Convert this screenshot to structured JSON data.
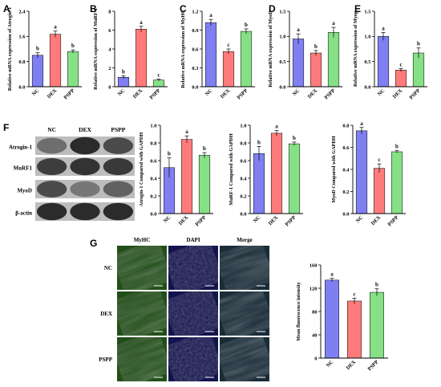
{
  "colors": {
    "nc": "#7f7ff2",
    "dex": "#ff7b7b",
    "pspp": "#86e086",
    "fluor_green": "#3a8a28",
    "fluor_blue": "#16165a"
  },
  "panel_letters": [
    "A",
    "B",
    "C",
    "D",
    "E",
    "F",
    "G"
  ],
  "categories": [
    "NC",
    "DEX",
    "PSPP"
  ],
  "chart_data": [
    {
      "panel": "A",
      "type": "bar",
      "categories": [
        "NC",
        "DEX",
        "PSPP"
      ],
      "values": [
        1.0,
        1.67,
        1.12
      ],
      "errors": [
        0.08,
        0.1,
        0.05
      ],
      "sig": [
        "b",
        "a",
        "b"
      ],
      "ylabel": "Relative mRNA expression of Atrogin-1",
      "ylim": [
        0.0,
        2.4
      ],
      "yticks": [
        "0.0",
        "0.8",
        "1.6",
        "2.4"
      ]
    },
    {
      "panel": "B",
      "type": "bar",
      "categories": [
        "NC",
        "DEX",
        "PSPP"
      ],
      "values": [
        1.0,
        6.1,
        0.7
      ],
      "errors": [
        0.15,
        0.3,
        0.1
      ],
      "sig": [
        "b",
        "a",
        "c"
      ],
      "ylabel": "Relative mRNA expression of MuRF-1",
      "ylim": [
        0,
        8
      ],
      "yticks": [
        "0",
        "2",
        "4",
        "6",
        "8"
      ]
    },
    {
      "panel": "C",
      "type": "bar",
      "categories": [
        "NC",
        "DEX",
        "PSPP"
      ],
      "values": [
        1.02,
        0.56,
        0.88
      ],
      "errors": [
        0.05,
        0.04,
        0.04
      ],
      "sig": [
        "a",
        "c",
        "b"
      ],
      "ylabel": "Relative mRNA expression of MyHC",
      "ylim": [
        0.0,
        1.2
      ],
      "yticks": [
        "0.0",
        "0.3",
        "0.6",
        "0.9",
        "1.2"
      ]
    },
    {
      "panel": "D",
      "type": "bar",
      "categories": [
        "NC",
        "DEX",
        "PSPP"
      ],
      "values": [
        0.95,
        0.67,
        1.08
      ],
      "errors": [
        0.1,
        0.05,
        0.1
      ],
      "sig": [
        "a",
        "b",
        "a"
      ],
      "ylabel": "Relative mRNA expression of MyoD",
      "ylim": [
        0.0,
        1.5
      ],
      "yticks": [
        "0.0",
        "0.5",
        "1.0",
        "1.5"
      ]
    },
    {
      "panel": "E",
      "type": "bar",
      "categories": [
        "NC",
        "DEX",
        "PSPP"
      ],
      "values": [
        1.0,
        0.33,
        0.67
      ],
      "errors": [
        0.08,
        0.03,
        0.1
      ],
      "sig": [
        "a",
        "c",
        "b"
      ],
      "ylabel": "Relative mRNA expression of Myog",
      "ylim": [
        0.0,
        1.5
      ],
      "yticks": [
        "0.0",
        "0.5",
        "1.0",
        "1.5"
      ]
    },
    {
      "panel": "F",
      "type": "bar",
      "categories": [
        "NC",
        "DEX",
        "PSPP"
      ],
      "values": [
        0.52,
        0.84,
        0.66
      ],
      "errors": [
        0.11,
        0.04,
        0.03
      ],
      "sig": [
        "b",
        "a",
        "b"
      ],
      "ylabel": "Atrogin-1 Compared with GAPDH",
      "ylim": [
        0.0,
        1.0
      ],
      "yticks": [
        "0.0",
        "0.2",
        "0.4",
        "0.6",
        "0.8",
        "1.0"
      ]
    },
    {
      "panel": "F",
      "type": "bar",
      "categories": [
        "NC",
        "DEX",
        "PSPP"
      ],
      "values": [
        0.68,
        0.91,
        0.79
      ],
      "errors": [
        0.08,
        0.03,
        0.02
      ],
      "sig": [
        "b",
        "a",
        "b"
      ],
      "ylabel": "MuRF-1 Compared with GAPDH",
      "ylim": [
        0.0,
        1.0
      ],
      "yticks": [
        "0.0",
        "0.2",
        "0.4",
        "0.6",
        "0.8",
        "1.0"
      ]
    },
    {
      "panel": "F",
      "type": "bar",
      "categories": [
        "NC",
        "DEX",
        "PSPP"
      ],
      "values": [
        0.75,
        0.41,
        0.56
      ],
      "errors": [
        0.03,
        0.04,
        0.01
      ],
      "sig": [
        "a",
        "c",
        "b"
      ],
      "ylabel": "MyoD Compared with GAPDH",
      "ylim": [
        0.0,
        0.8
      ],
      "yticks": [
        "0.0",
        "0.2",
        "0.4",
        "0.6",
        "0.8"
      ]
    },
    {
      "panel": "G",
      "type": "bar",
      "categories": [
        "NC",
        "DEX",
        "PSPP"
      ],
      "values": [
        134,
        98,
        113
      ],
      "errors": [
        3,
        5,
        6
      ],
      "sig": [
        "a",
        "c",
        "b"
      ],
      "ylabel": "Mean fluorescence intensity",
      "ylim": [
        0,
        160
      ],
      "yticks": [
        "0",
        "40",
        "80",
        "120",
        "160"
      ]
    }
  ],
  "western_blot": {
    "columns": [
      "NC",
      "DEX",
      "PSPP"
    ],
    "rows": [
      {
        "label": "Atrogin-1",
        "intensity": [
          0.55,
          0.92,
          0.75
        ]
      },
      {
        "label": "MuRF1",
        "intensity": [
          0.82,
          0.88,
          0.84
        ]
      },
      {
        "label": "MyoD",
        "intensity": [
          0.75,
          0.5,
          0.62
        ]
      },
      {
        "label": "β-actin",
        "intensity": [
          0.92,
          0.92,
          0.92
        ]
      }
    ]
  },
  "fluorescence": {
    "columns": [
      "MyHC",
      "DAPI",
      "Merge"
    ],
    "rows": [
      "NC",
      "DEX",
      "PSPP"
    ]
  }
}
